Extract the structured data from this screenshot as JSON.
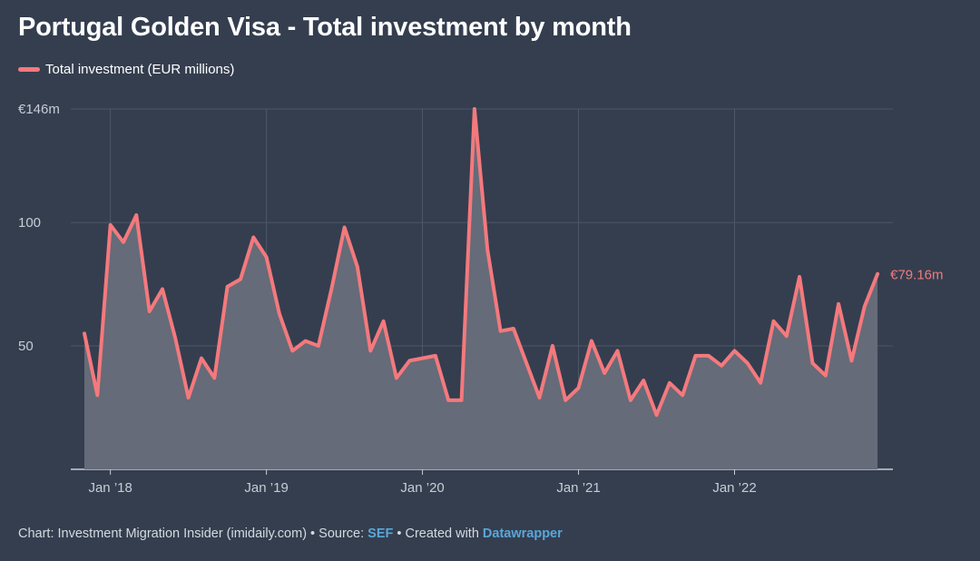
{
  "colors": {
    "background": "#343e4f",
    "line": "#f4797d",
    "area": "#656b78",
    "grid": "#4e5768",
    "axis": "#c9cdd3",
    "link": "#59a7d9"
  },
  "chart_data": {
    "type": "area",
    "title": "Portugal Golden Visa - Total investment by month",
    "series": [
      {
        "name": "Total investment (EUR millions)",
        "start": "2017-11",
        "values": [
          55,
          30,
          99,
          92,
          103,
          64,
          73,
          53,
          29,
          45,
          37,
          74,
          77,
          94,
          86,
          63,
          48,
          52,
          50,
          73,
          98,
          82,
          48,
          60,
          37,
          44,
          45,
          46,
          28,
          28,
          146,
          89,
          56,
          57,
          43,
          29,
          50,
          28,
          33,
          52,
          39,
          48,
          28,
          36,
          22,
          35,
          30,
          46,
          46,
          42,
          48,
          43,
          35,
          60,
          54,
          78,
          43,
          38,
          67,
          44,
          66,
          79.16
        ]
      }
    ],
    "x_ticks": [
      "Jan ’18",
      "Jan ’19",
      "Jan ’20",
      "Jan ’21",
      "Jan ’22"
    ],
    "y_ticks": [
      {
        "value": 50,
        "label": "50"
      },
      {
        "value": 100,
        "label": "100"
      },
      {
        "value": 146,
        "label": "€146m"
      }
    ],
    "ylim": [
      0,
      146
    ],
    "end_label": "€79.16m",
    "legend_position": "top-left",
    "grid": true
  },
  "footer": {
    "prefix": "Chart: Investment Migration Insider (imidaily.com) • Source: ",
    "source": "SEF",
    "middle": " • Created with ",
    "tool": "Datawrapper"
  }
}
